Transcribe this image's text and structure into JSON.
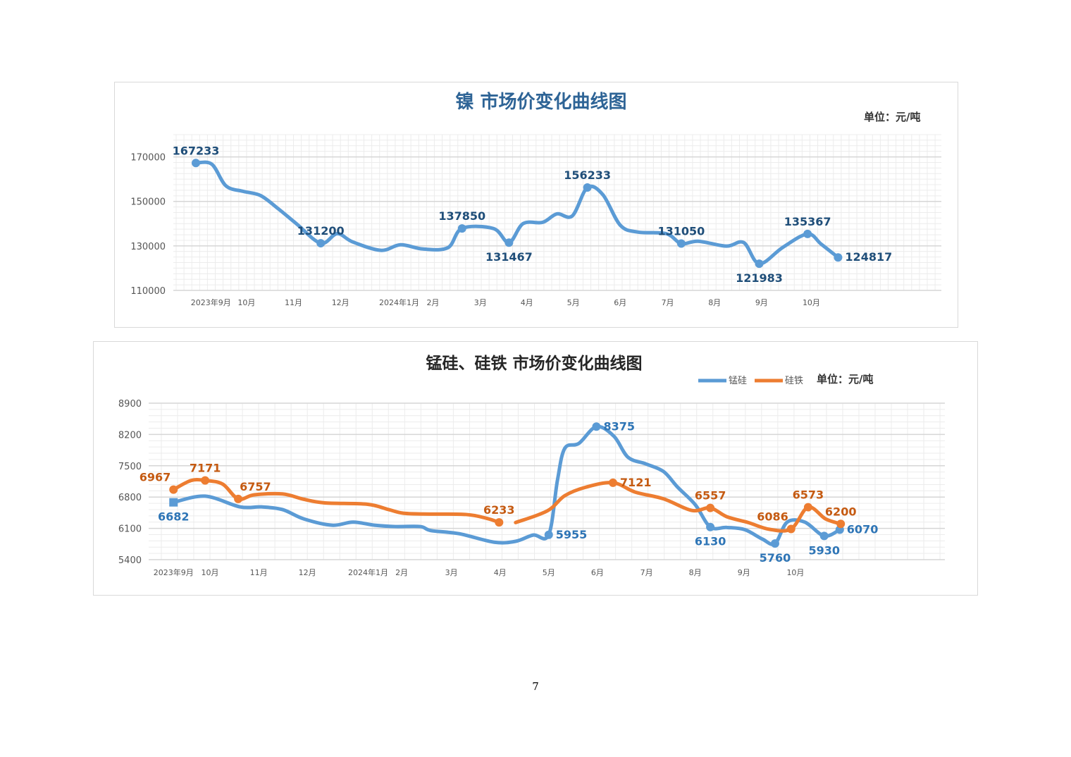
{
  "page_number": "7",
  "chart_data": [
    {
      "type": "line",
      "title": "镍  市场价变化曲线图",
      "unit": "单位：元/吨",
      "xlabel": "",
      "ylabel": "",
      "x_units": "months since 2023-09",
      "xlim": [
        -0.56,
        15.8
      ],
      "ylim": [
        110000,
        180000
      ],
      "yticks": [
        110000,
        130000,
        150000,
        170000
      ],
      "grid": true,
      "legend": "none",
      "xtick_labels": [
        {
          "x": 0.24,
          "label": "2023年9月"
        },
        {
          "x": 1,
          "label": "10月"
        },
        {
          "x": 2,
          "label": "11月"
        },
        {
          "x": 3,
          "label": "12月"
        },
        {
          "x": 4.25,
          "label": "2024年1月"
        },
        {
          "x": 4.97,
          "label": "2月"
        },
        {
          "x": 5.98,
          "label": "3月"
        },
        {
          "x": 6.97,
          "label": "4月"
        },
        {
          "x": 7.96,
          "label": "5月"
        },
        {
          "x": 8.96,
          "label": "6月"
        },
        {
          "x": 9.97,
          "label": "7月"
        },
        {
          "x": 10.97,
          "label": "8月"
        },
        {
          "x": 11.97,
          "label": "9月"
        },
        {
          "x": 13.03,
          "label": "10月"
        }
      ],
      "series": [
        {
          "name": "镍",
          "color": "#5b9bd5",
          "label_color": "#1f4e79",
          "points": [
            [
              -0.08,
              167233,
              "167233",
              "above"
            ],
            [
              0.26,
              166700
            ],
            [
              0.56,
              157000
            ],
            [
              0.93,
              154500
            ],
            [
              1.3,
              152600
            ],
            [
              1.68,
              146600
            ],
            [
              2.06,
              140000
            ],
            [
              2.58,
              131200,
              "131200",
              "above"
            ],
            [
              2.93,
              135500
            ],
            [
              3.26,
              131800
            ],
            [
              3.86,
              128000
            ],
            [
              4.28,
              130500
            ],
            [
              4.76,
              128600
            ],
            [
              5.29,
              129200
            ],
            [
              5.59,
              137850,
              "137850",
              "above"
            ],
            [
              6.26,
              137800
            ],
            [
              6.59,
              131467,
              "131467",
              "below"
            ],
            [
              6.89,
              140000
            ],
            [
              7.31,
              140600
            ],
            [
              7.61,
              144400
            ],
            [
              7.94,
              143500
            ],
            [
              8.26,
              156233,
              "156233",
              "above"
            ],
            [
              8.59,
              153000
            ],
            [
              8.96,
              139300
            ],
            [
              9.34,
              136200
            ],
            [
              9.94,
              135500
            ],
            [
              10.26,
              131050,
              "131050",
              "above"
            ],
            [
              10.62,
              132100
            ],
            [
              11.22,
              129900
            ],
            [
              11.59,
              131500
            ],
            [
              11.92,
              121983,
              "121983",
              "below"
            ],
            [
              12.42,
              129300
            ],
            [
              12.95,
              135367,
              "135367",
              "above"
            ],
            [
              13.24,
              130800
            ],
            [
              13.6,
              124817,
              "124817",
              "right"
            ]
          ]
        }
      ]
    },
    {
      "type": "line",
      "title": "锰硅、硅铁  市场价变化曲线图",
      "unit": "单位：元/吨",
      "xlabel": "",
      "ylabel": "",
      "x_units": "months since 2023-09",
      "xlim": [
        -0.26,
        16.1
      ],
      "ylim": [
        5400,
        8900
      ],
      "yticks": [
        5400,
        6100,
        6800,
        7500,
        8200,
        8900
      ],
      "grid": true,
      "legend": "top-right",
      "xtick_labels": [
        {
          "x": 0.25,
          "label": "2023年9月"
        },
        {
          "x": 1,
          "label": "10月"
        },
        {
          "x": 2,
          "label": "11月"
        },
        {
          "x": 3,
          "label": "12月"
        },
        {
          "x": 4.25,
          "label": "2024年1月"
        },
        {
          "x": 4.94,
          "label": "2月"
        },
        {
          "x": 5.96,
          "label": "3月"
        },
        {
          "x": 6.96,
          "label": "4月"
        },
        {
          "x": 7.96,
          "label": "5月"
        },
        {
          "x": 8.96,
          "label": "6月"
        },
        {
          "x": 9.97,
          "label": "7月"
        },
        {
          "x": 10.97,
          "label": "8月"
        },
        {
          "x": 11.97,
          "label": "9月"
        },
        {
          "x": 13.03,
          "label": "10月"
        }
      ],
      "series": [
        {
          "name": "锰硅",
          "color": "#5b9bd5",
          "label_color": "#2e75b6",
          "points": [
            [
              0.25,
              6682,
              "6682",
              "below"
            ],
            [
              0.9,
              6820
            ],
            [
              1.62,
              6580
            ],
            [
              2.06,
              6580
            ],
            [
              2.49,
              6520
            ],
            [
              2.93,
              6310
            ],
            [
              3.51,
              6170
            ],
            [
              3.94,
              6240
            ],
            [
              4.38,
              6170
            ],
            [
              4.81,
              6140
            ],
            [
              5.32,
              6140
            ],
            [
              5.54,
              6050
            ],
            [
              6.12,
              5980
            ],
            [
              6.84,
              5790
            ],
            [
              7.28,
              5810
            ],
            [
              7.64,
              5950
            ],
            [
              7.96,
              5955,
              "5955",
              "right"
            ],
            [
              8.14,
              7180
            ],
            [
              8.29,
              7890
            ],
            [
              8.58,
              8000
            ],
            [
              8.94,
              8375,
              "8375",
              "right"
            ],
            [
              9.3,
              8160
            ],
            [
              9.59,
              7690
            ],
            [
              9.96,
              7540
            ],
            [
              10.32,
              7370
            ],
            [
              10.61,
              7020
            ],
            [
              10.97,
              6630
            ],
            [
              11.28,
              6130,
              "6130",
              "below"
            ],
            [
              11.62,
              6120
            ],
            [
              11.99,
              6070
            ],
            [
              12.35,
              5860
            ],
            [
              12.61,
              5760,
              "5760",
              "below"
            ],
            [
              12.86,
              6240
            ],
            [
              13.22,
              6240
            ],
            [
              13.62,
              5930,
              "5930",
              "below"
            ],
            [
              13.94,
              6070,
              "6070",
              "right"
            ]
          ]
        },
        {
          "name": "硅铁",
          "color": "#ed7d31",
          "label_color": "#c55a11",
          "points": [
            [
              0.25,
              6967,
              "6967",
              "above-left"
            ],
            [
              0.61,
              7170
            ],
            [
              0.9,
              7171,
              "7171",
              "above"
            ],
            [
              1.26,
              7090
            ],
            [
              1.58,
              6757,
              "6757",
              "above-right"
            ],
            [
              1.91,
              6850
            ],
            [
              2.49,
              6870
            ],
            [
              2.93,
              6750
            ],
            [
              3.36,
              6670
            ],
            [
              4.23,
              6640
            ],
            [
              4.67,
              6520
            ],
            [
              4.96,
              6440
            ],
            [
              5.39,
              6420
            ],
            [
              6.26,
              6410
            ],
            [
              6.7,
              6320
            ],
            [
              6.94,
              6233,
              "6233",
              "above"
            ],
            null,
            [
              7.28,
              6230
            ],
            [
              7.93,
              6490
            ],
            [
              8.29,
              6830
            ],
            [
              8.72,
              7020
            ],
            [
              9.28,
              7121,
              "7121",
              "right"
            ],
            [
              9.74,
              6910
            ],
            [
              10.32,
              6760
            ],
            [
              10.9,
              6500
            ],
            [
              11.28,
              6557,
              "6557",
              "above"
            ],
            [
              11.62,
              6360
            ],
            [
              12.06,
              6230
            ],
            [
              12.49,
              6080
            ],
            [
              12.94,
              6086,
              "6086",
              "above-left"
            ],
            [
              13.29,
              6573,
              "6573",
              "above"
            ],
            [
              13.65,
              6310
            ],
            [
              13.96,
              6200,
              "6200",
              "above"
            ]
          ]
        }
      ]
    }
  ]
}
